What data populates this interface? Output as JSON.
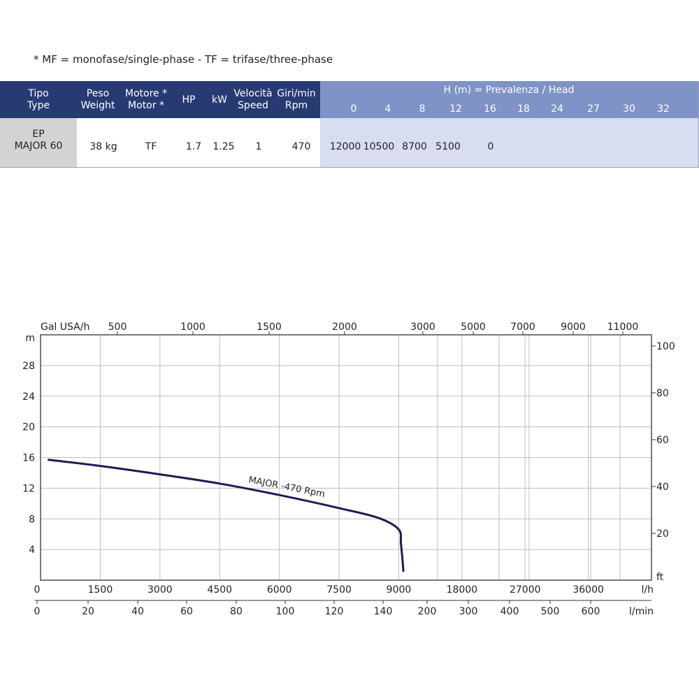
{
  "note": "* MF = monofase/single-phase - TF = trifase/three-phase",
  "table": {
    "columns": [
      {
        "line1": "Tipo",
        "line2": "Type"
      },
      {
        "line1": "Peso",
        "line2": "Weight"
      },
      {
        "line1": "Motore *",
        "line2": "Motor *"
      },
      {
        "line1": "HP",
        "line2": ""
      },
      {
        "line1": "kW",
        "line2": ""
      },
      {
        "line1": "Velocità",
        "line2": "Speed"
      },
      {
        "line1": "Giri/min",
        "line2": "Rpm"
      }
    ],
    "head_title": "H (m) = Prevalenza /  Head",
    "heads": [
      "0",
      "4",
      "8",
      "12",
      "16",
      "18",
      "24",
      "27",
      "30",
      "32"
    ],
    "row": {
      "type_line1": "EP",
      "type_line2": "MAJOR 60",
      "weight": "38 kg",
      "motor": "TF",
      "hp": "1.7",
      "kw": "1.25",
      "speed": "1",
      "rpm": "470",
      "flows": [
        "12000",
        "10500",
        "8700",
        "5100",
        "0",
        "",
        "",
        "",
        "",
        ""
      ]
    },
    "colors": {
      "header_dark": "#283a72",
      "header_light": "#7f93c6",
      "row_light": "#d9ddf0",
      "row_gray": "#d3d3d3"
    }
  },
  "chart_data": {
    "type": "line",
    "title": "",
    "grid": true,
    "series": [
      {
        "name": "MAJOR -470 Rpm",
        "color": "#1b1c55",
        "x_lh": [
          200,
          1500,
          3000,
          4500,
          6000,
          7500,
          8500,
          9000,
          9300,
          9500,
          9650
        ],
        "y_m": [
          15.7,
          14.9,
          13.8,
          12.6,
          11.1,
          9.4,
          8.1,
          6.6,
          4.8,
          3.0,
          1.2
        ]
      }
    ],
    "y_axis_left": {
      "label": "m",
      "ticks": [
        "4",
        "8",
        "12",
        "16",
        "20",
        "24",
        "28"
      ],
      "values": [
        4,
        8,
        12,
        16,
        20,
        24,
        28
      ],
      "range": [
        0,
        32
      ]
    },
    "y_axis_right": {
      "label": "ft",
      "ticks": [
        "20",
        "40",
        "60",
        "80",
        "100"
      ],
      "values": [
        20,
        40,
        60,
        80,
        100
      ]
    },
    "x_axis_lh": {
      "label": "l/h",
      "origin": "0",
      "ticks": [
        "1500",
        "3000",
        "4500",
        "6000",
        "7500",
        "9000",
        "18000",
        "27000",
        "36000"
      ],
      "values": [
        1500,
        3000,
        4500,
        6000,
        7500,
        9000,
        18000,
        27000,
        36000
      ],
      "linear_break": 9000,
      "max": 45000
    },
    "x_axis_lmin": {
      "label": "l/min",
      "origin": "0",
      "ticks": [
        "20",
        "40",
        "60",
        "80",
        "100",
        "120",
        "140",
        "200",
        "300",
        "400",
        "500",
        "600"
      ],
      "values": [
        20,
        40,
        60,
        80,
        100,
        120,
        140,
        200,
        300,
        400,
        500,
        600
      ]
    },
    "x_axis_gal": {
      "label": "Gal USA/h",
      "ticks": [
        "500",
        "1000",
        "1500",
        "2000",
        "3000",
        "5000",
        "7000",
        "9000",
        "11000"
      ],
      "values": [
        500,
        1000,
        1500,
        2000,
        3000,
        5000,
        7000,
        9000,
        11000
      ]
    }
  }
}
